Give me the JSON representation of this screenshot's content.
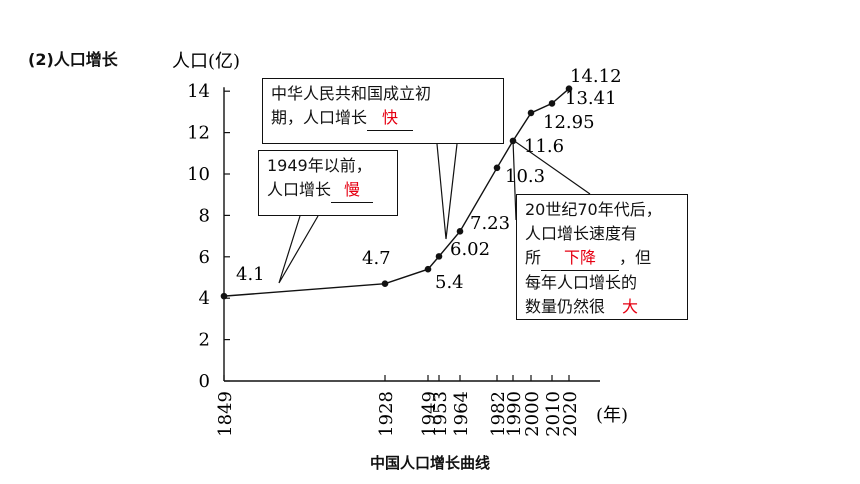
{
  "heading": "(2)人口增长",
  "caption": "中国人口增长曲线",
  "chart_data": {
    "type": "line",
    "ylabel": "人口(亿)",
    "xlabel": "(年)",
    "ylim": [
      0,
      14
    ],
    "yticks": [
      "0",
      "2",
      "4",
      "6",
      "8",
      "10",
      "12",
      "14"
    ],
    "x": [
      1849,
      1928,
      1949,
      1953,
      1964,
      1982,
      1990,
      2000,
      2010,
      2020
    ],
    "x_labels": [
      "1849",
      "1928",
      "1949",
      "1953",
      "1964",
      "1982",
      "1990",
      "2000",
      "2010",
      "2020"
    ],
    "values": [
      4.1,
      4.7,
      5.4,
      6.02,
      7.23,
      10.3,
      11.6,
      12.95,
      13.41,
      14.12
    ],
    "data_labels": [
      "4.1",
      "4.7",
      "5.4",
      "6.02",
      "7.23",
      "10.3",
      "11.6",
      "12.95",
      "13.41",
      "14.12"
    ]
  },
  "annotations": {
    "before_1949": {
      "line1": "1949年以前，",
      "prefix": "人口增长",
      "answer": "慢"
    },
    "early_prc": {
      "line1": "中华人民共和国成立初",
      "prefix": "期，人口增长",
      "answer": "快"
    },
    "after_70s": {
      "line1": "20世纪70年代后，",
      "line2": "人口增长速度有",
      "prefix3": "所",
      "answer3": "下降",
      "suffix3": "，但",
      "line4": "每年人口增长的",
      "prefix5": "数量仍然很",
      "answer5": "大"
    }
  }
}
